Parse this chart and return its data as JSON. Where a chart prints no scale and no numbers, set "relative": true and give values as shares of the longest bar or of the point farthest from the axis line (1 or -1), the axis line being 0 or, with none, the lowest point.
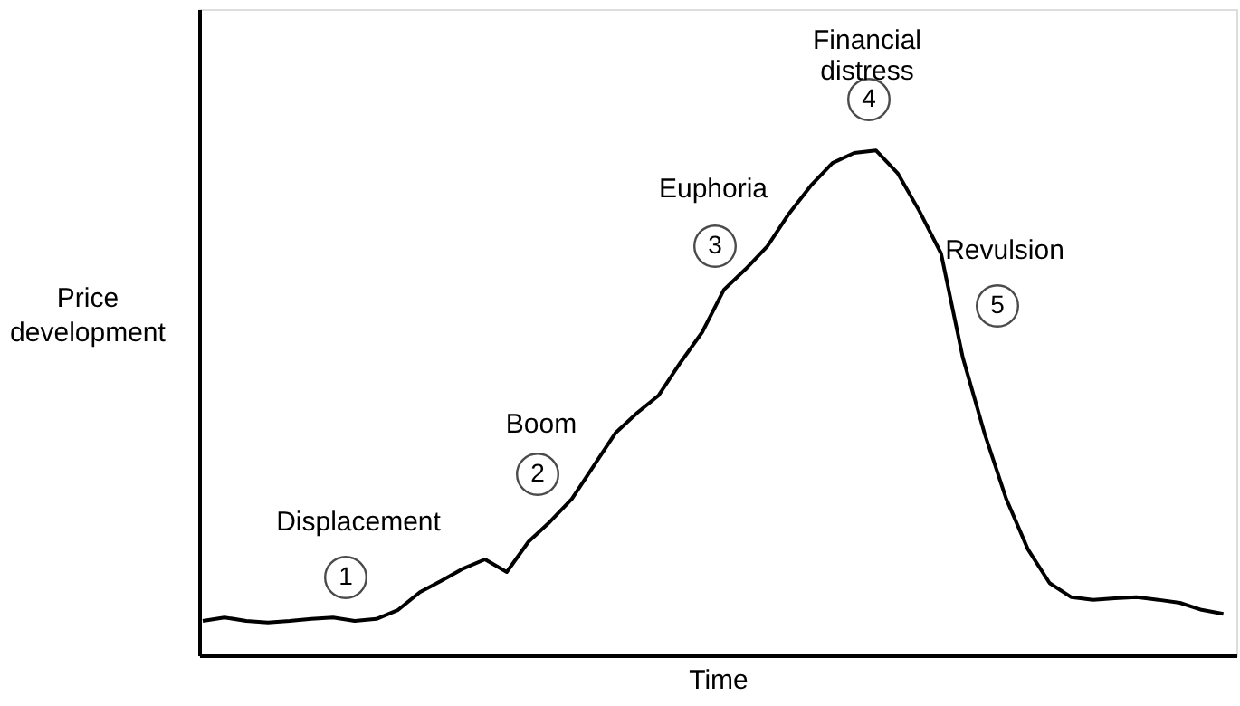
{
  "chart_data": {
    "type": "line",
    "relative": true,
    "xlabel": "Time",
    "ylabel": "Price development",
    "categories": [
      null,
      null,
      null,
      null,
      null,
      null,
      null,
      null,
      null,
      null,
      null,
      null,
      null,
      null,
      null,
      null,
      null,
      null,
      null,
      null,
      null,
      null,
      null,
      null,
      null,
      null,
      null,
      null,
      null,
      null,
      null,
      null,
      null,
      null,
      null,
      null,
      null,
      null,
      null,
      null,
      null,
      null,
      null,
      null,
      null,
      null,
      null,
      null
    ],
    "series": [
      {
        "color": "#000000",
        "values": [
          0.068,
          0.075,
          0.068,
          0.065,
          0.068,
          0.072,
          0.075,
          0.068,
          0.072,
          0.09,
          0.125,
          0.148,
          0.172,
          0.19,
          0.165,
          0.225,
          0.265,
          0.31,
          0.375,
          0.44,
          0.48,
          0.515,
          0.58,
          0.64,
          0.724,
          0.765,
          0.81,
          0.875,
          0.93,
          0.975,
          0.995,
          1.0,
          0.955,
          0.88,
          0.796,
          0.59,
          0.44,
          0.31,
          0.21,
          0.143,
          0.115,
          0.11,
          0.113,
          0.115,
          0.11,
          0.104,
          0.09,
          0.082
        ]
      }
    ],
    "annotations": [
      "Displacement",
      "1",
      "Boom",
      "2",
      "Euphoria",
      "3",
      "Financial distress",
      "4",
      "Revulsion",
      "5"
    ],
    "grid": false,
    "marker": "none",
    "line_style": "solid"
  }
}
